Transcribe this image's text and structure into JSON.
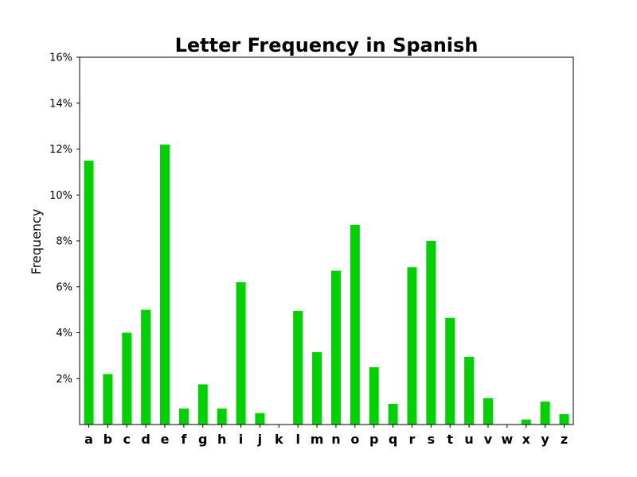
{
  "chart_data": {
    "type": "bar",
    "title": "Letter Frequency in Spanish",
    "xlabel": "",
    "ylabel": "Frequency",
    "categories": [
      "a",
      "b",
      "c",
      "d",
      "e",
      "f",
      "g",
      "h",
      "i",
      "j",
      "k",
      "l",
      "m",
      "n",
      "o",
      "p",
      "q",
      "r",
      "s",
      "t",
      "u",
      "v",
      "w",
      "x",
      "y",
      "z"
    ],
    "values": [
      11.5,
      2.2,
      4.0,
      5.0,
      12.2,
      0.7,
      1.75,
      0.7,
      6.2,
      0.5,
      0.0,
      4.95,
      3.15,
      6.7,
      8.7,
      2.5,
      0.9,
      6.85,
      8.0,
      4.65,
      2.95,
      1.15,
      0.0,
      0.22,
      1.0,
      0.45
    ],
    "ylim": [
      0,
      16
    ],
    "yticks": [
      2,
      4,
      6,
      8,
      10,
      12,
      14,
      16
    ],
    "ytick_labels": [
      "2%",
      "4%",
      "6%",
      "8%",
      "10%",
      "12%",
      "14%",
      "16%"
    ],
    "bar_color": "#00d100",
    "grid": false
  }
}
